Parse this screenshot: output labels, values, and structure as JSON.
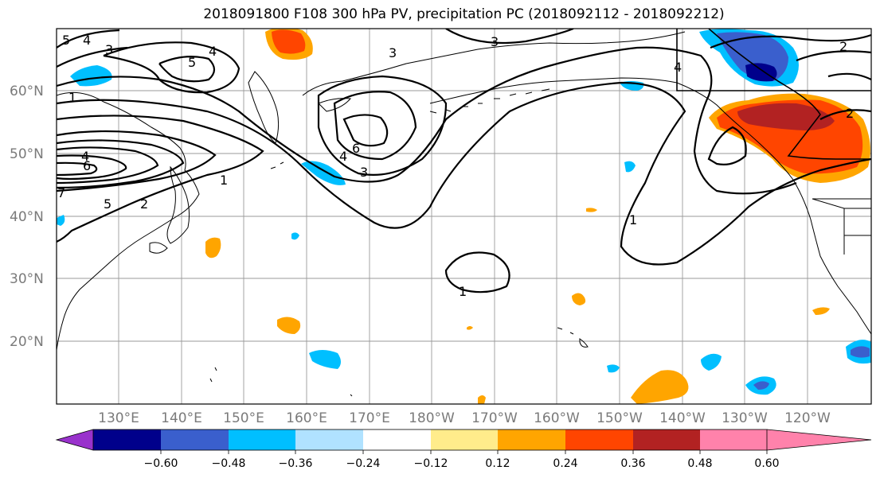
{
  "title": "2018091800 F108 300 hPa PV, precipitation PC (2018092112 - 2018092212)",
  "lat_labels": [
    "60°N",
    "50°N",
    "40°N",
    "30°N",
    "20°N"
  ],
  "lon_labels": [
    "130°E",
    "140°E",
    "150°E",
    "160°E",
    "170°E",
    "180°W",
    "170°W",
    "160°W",
    "150°W",
    "140°W",
    "130°W",
    "120°W"
  ],
  "colorbar": {
    "labels": [
      "−0.60",
      "−0.48",
      "−0.36",
      "−0.24",
      "−0.12",
      "0.12",
      "0.24",
      "0.36",
      "0.48",
      "0.60"
    ],
    "colors": [
      "#9932cc",
      "#00008b",
      "#3a5fcd",
      "#00bfff",
      "#b0e2ff",
      "#ffffff",
      "#ffec8b",
      "#ffa500",
      "#ff4500",
      "#b22222",
      "#ff82ab"
    ]
  },
  "contour_labels": [
    "5",
    "4",
    "3",
    "1",
    "5",
    "4",
    "3",
    "6",
    "7",
    "4",
    "5",
    "2",
    "1",
    "6",
    "4",
    "3",
    "3",
    "4",
    "2",
    "1",
    "1",
    "2"
  ]
}
